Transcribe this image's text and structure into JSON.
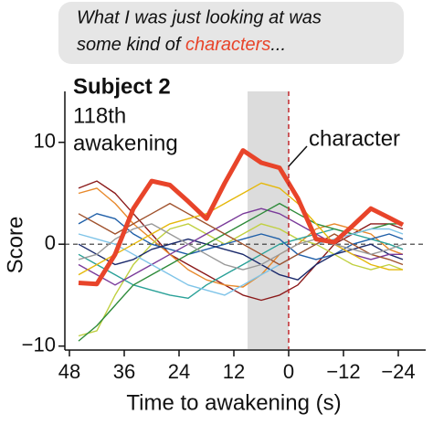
{
  "bubble": {
    "line1": "What I was just looking at was",
    "line2_start": "some kind of ",
    "line2_highlight": "characters",
    "line2_end": "..."
  },
  "chart_data": {
    "type": "line",
    "subtitle": "Subject 2",
    "annotation_lines": [
      "118th",
      "awakening"
    ],
    "ylabel": "Score",
    "xlabel": "Time to awakening (s)",
    "xlim": [
      49,
      -30
    ],
    "ylim": [
      -10.3,
      15
    ],
    "xticks": [
      48,
      36,
      24,
      12,
      0,
      {
        "value": -12,
        "label": "−12"
      },
      {
        "value": -24,
        "label": "−24"
      }
    ],
    "yticks": [
      {
        "value": -10,
        "label": "−10"
      },
      0,
      10
    ],
    "shade_range": [
      9,
      0
    ],
    "event_time": 0,
    "x": [
      46,
      42,
      38,
      34,
      30,
      26,
      22,
      18,
      14,
      10,
      6,
      2,
      -2,
      -6,
      -10,
      -14,
      -18,
      -22,
      -25
    ],
    "series": [
      {
        "color": "#8b1a1a",
        "values": [
          5.5,
          6.2,
          5,
          3,
          1,
          -1,
          -2,
          -3,
          -4,
          -5,
          -5.5,
          -5,
          -4,
          -2,
          0,
          1,
          2,
          2,
          1.5
        ]
      },
      {
        "color": "#e8892b",
        "values": [
          5,
          5.5,
          4,
          2,
          0.5,
          -1,
          -2.5,
          -3.5,
          -4,
          -4.2,
          -3,
          -1,
          0,
          1.5,
          2,
          1.5,
          1,
          -0.5,
          -1
        ]
      },
      {
        "color": "#c0d040",
        "values": [
          -9,
          -8.5,
          -5,
          -2,
          0,
          1.5,
          2,
          1,
          0,
          1,
          2,
          1.5,
          0.5,
          0,
          -1,
          -2,
          -2.5,
          -2,
          -2.5
        ]
      },
      {
        "color": "#2aa198",
        "values": [
          -1,
          -2,
          -3,
          -4,
          -4.5,
          -5,
          -5.3,
          -4,
          -3,
          -2,
          -1,
          0,
          0.5,
          1,
          1.5,
          1,
          0.5,
          0,
          -0.5
        ]
      },
      {
        "color": "#1f5fa8",
        "values": [
          2,
          3,
          2.5,
          1,
          0,
          -0.5,
          -1,
          -0.5,
          0,
          0.5,
          1,
          0.5,
          -1,
          -1.5,
          -1,
          0,
          0.5,
          1,
          0.5
        ]
      },
      {
        "color": "#1b2a6b",
        "values": [
          0,
          -1,
          -2,
          -1.5,
          -0.5,
          0,
          0.5,
          0,
          -0.5,
          -1,
          -2,
          -3,
          -3.5,
          -2,
          -1,
          -0.5,
          0,
          -1,
          -1.5
        ]
      },
      {
        "color": "#7a3b9a",
        "values": [
          -2,
          -3,
          -4,
          -3,
          -2,
          -1,
          0,
          1,
          2,
          3,
          3.5,
          3,
          2,
          1,
          0,
          -1,
          -1.5,
          -1,
          -1
        ]
      },
      {
        "color": "#2e8b3a",
        "values": [
          -9.5,
          -8,
          -6,
          -4,
          -3,
          -2,
          -1,
          0,
          1,
          2,
          3,
          4,
          3,
          2,
          1.5,
          1,
          1.5,
          2,
          2
        ]
      },
      {
        "color": "#7fc4e8",
        "values": [
          1,
          0.5,
          0,
          -1,
          -2,
          -3,
          -4,
          -4.5,
          -5,
          -4,
          -3,
          -2,
          -1,
          0,
          0.5,
          1,
          1.5,
          1.5,
          1
        ]
      },
      {
        "color": "#a0522d",
        "values": [
          3,
          2,
          1,
          2,
          3,
          4,
          3,
          2,
          1,
          0,
          -1,
          -2,
          -1,
          0,
          1,
          0,
          -1,
          -1.5,
          -2
        ]
      },
      {
        "color": "#e5b80b",
        "values": [
          -3,
          -2,
          -1,
          0,
          1,
          2,
          2.5,
          3,
          4,
          5,
          6,
          5.5,
          4,
          2,
          0,
          -1,
          -2,
          -2.5,
          -2.5
        ]
      },
      {
        "color": "#999999",
        "values": [
          -1.5,
          -1,
          0.5,
          1.5,
          2,
          1,
          0,
          -1,
          -2,
          -2.5,
          -2,
          -1,
          0,
          0.5,
          0,
          -0.5,
          -1,
          -0.5,
          0
        ]
      },
      {
        "name": "character",
        "color": "#e8442a",
        "values": [
          -3.8,
          -3.9,
          -1,
          3.5,
          6.2,
          5.8,
          4.2,
          2.5,
          6,
          9.2,
          8,
          7.5,
          4.5,
          0.5,
          0.2,
          1.8,
          3.5,
          2.6,
          1.9
        ]
      }
    ]
  }
}
